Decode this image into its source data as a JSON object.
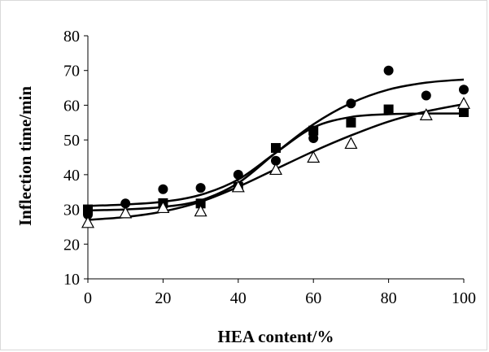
{
  "chart_data": {
    "type": "scatter",
    "title": "",
    "xlabel": "HEA content/%",
    "ylabel": "Inflection time/min",
    "xlim": [
      0,
      100
    ],
    "ylim": [
      10,
      80
    ],
    "xticks": [
      "0",
      "20",
      "40",
      "60",
      "80",
      "100"
    ],
    "yticks": [
      "10",
      "20",
      "30",
      "40",
      "50",
      "60",
      "70",
      "80"
    ],
    "grid": false,
    "legend": "none",
    "series": [
      {
        "marker": "circle",
        "color": "#000000",
        "x": [
          0,
          10,
          20,
          30,
          40,
          50,
          60,
          70,
          80,
          90,
          100
        ],
        "y": [
          28.5,
          31.7,
          35.8,
          36.2,
          40.0,
          44.0,
          50.5,
          60.5,
          70.0,
          62.8,
          64.5
        ],
        "fit": [
          [
            0,
            29.7
          ],
          [
            10,
            30.0
          ],
          [
            20,
            30.7
          ],
          [
            30,
            32.6
          ],
          [
            40,
            37.6
          ],
          [
            50,
            46.3
          ],
          [
            60,
            54.5
          ],
          [
            70,
            60.6
          ],
          [
            80,
            64.5
          ],
          [
            90,
            66.5
          ],
          [
            100,
            67.4
          ]
        ]
      },
      {
        "marker": "square",
        "color": "#000000",
        "x": [
          0,
          20,
          30,
          40,
          50,
          60,
          70,
          80,
          100
        ],
        "y": [
          30.0,
          31.8,
          31.7,
          36.5,
          47.7,
          52.7,
          55.0,
          58.8,
          58.0
        ],
        "fit": [
          [
            0,
            31.0
          ],
          [
            10,
            31.4
          ],
          [
            20,
            32.2
          ],
          [
            30,
            34.2
          ],
          [
            40,
            38.6
          ],
          [
            50,
            46.3
          ],
          [
            60,
            53.6
          ],
          [
            70,
            56.6
          ],
          [
            80,
            57.4
          ],
          [
            90,
            57.6
          ],
          [
            100,
            57.6
          ]
        ]
      },
      {
        "marker": "triangle-open",
        "color": "#000000",
        "x": [
          0,
          10,
          20,
          30,
          40,
          50,
          60,
          70,
          90,
          100
        ],
        "y": [
          26.2,
          29.0,
          30.5,
          29.5,
          36.5,
          41.5,
          45.0,
          49.0,
          57.2,
          60.5
        ],
        "fit": [
          [
            0,
            27.0
          ],
          [
            10,
            27.8
          ],
          [
            20,
            29.4
          ],
          [
            30,
            32.2
          ],
          [
            40,
            36.5
          ],
          [
            50,
            41.6
          ],
          [
            60,
            46.7
          ],
          [
            70,
            51.3
          ],
          [
            80,
            55.3
          ],
          [
            90,
            58.2
          ],
          [
            100,
            60.3
          ]
        ]
      }
    ]
  }
}
